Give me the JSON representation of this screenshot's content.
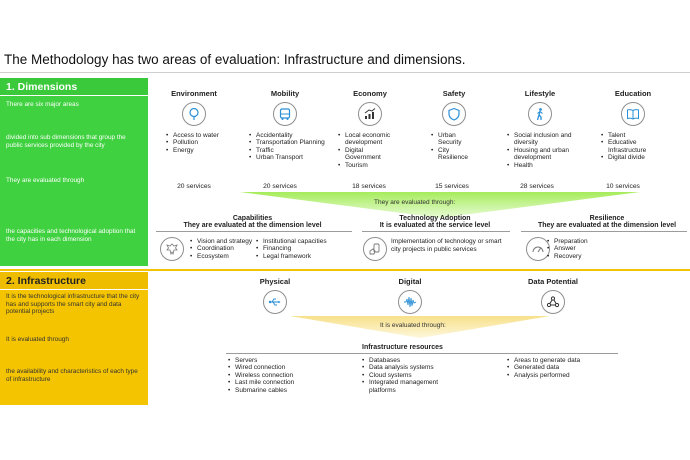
{
  "title": "The Methodology has two areas of evaluation: Infrastructure and dimensions.",
  "dimensions": {
    "header": "1.  Dimensions",
    "left_texts": [
      "There are six major areas",
      "divided into sub dimensions that group the public services provided by the city",
      "They are evaluated through",
      "the capacities and technological adoption that the city has in each dimension"
    ],
    "categories": [
      {
        "name": "Environment",
        "icon": "tree-icon",
        "items": [
          "Access to water",
          "Pollution",
          "Energy"
        ],
        "services": "20 services"
      },
      {
        "name": "Mobility",
        "icon": "bus-icon",
        "items": [
          "Accidentality",
          "Transportation Planning",
          "Traffic",
          "Urban Transport"
        ],
        "services": "20 services"
      },
      {
        "name": "Economy",
        "icon": "growth-chart-icon",
        "items": [
          "Local economic development",
          "Digital Government",
          "Tourism"
        ],
        "services": "18 services"
      },
      {
        "name": "Safety",
        "icon": "shield-icon",
        "items": [
          "Urban Security",
          "City Resilience"
        ],
        "services": "15 services"
      },
      {
        "name": "Lifestyle",
        "icon": "walking-person-icon",
        "items": [
          "Social inclusion and diversity",
          "Housing and urban development",
          "Health"
        ],
        "services": "28 services"
      },
      {
        "name": "Education",
        "icon": "book-icon",
        "items": [
          "Talent",
          "Educative Infrastructure",
          "Digital divide"
        ],
        "services": "10 services"
      }
    ],
    "evaluated_through": "They are evaluated through:",
    "capabilities": {
      "title": "Capabilities",
      "subtitle": "They are evaluated at the dimension level",
      "col1": [
        "Vision and strategy",
        "Coordination",
        "Ecosystem"
      ],
      "col2": [
        "Institutional capacities",
        "Financing",
        "Legal framework"
      ]
    },
    "technology": {
      "title": "Technology Adoption",
      "subtitle": "It is evaluated at the service level",
      "text": "Implementation of technology or smart city projects in public services"
    },
    "resilience": {
      "title": "Resilience",
      "subtitle": "They are evaluated at the dimension level",
      "items": [
        "Preparation",
        "Answer",
        "Recovery"
      ]
    }
  },
  "infrastructure": {
    "header": "2. Infrastructure",
    "left_texts": [
      "It is the technological infrastructure that the city has and supports the smart city and data potential projects",
      "It is evaluated through",
      "the availability and characteristics of each type of infrastructure"
    ],
    "categories": [
      {
        "name": "Physical",
        "icon": "usb-icon"
      },
      {
        "name": "Digital",
        "icon": "signal-wave-icon"
      },
      {
        "name": "Data Potential",
        "icon": "network-icon"
      }
    ],
    "evaluated_through": "It is evaluated through:",
    "resources_title": "Infrastructure resources",
    "col1": [
      "Servers",
      "Wired connection",
      "Wireless connection",
      "Last mile connection",
      "Submarine cables"
    ],
    "col2": [
      "Databases",
      "Data analysis systems",
      "Cloud systems",
      "Integrated management platforms"
    ],
    "col3": [
      "Areas to generate data",
      "Generated data",
      "Analysis performed"
    ]
  },
  "colors": {
    "dimensions": "#3fd13f",
    "infrastructure": "#f5c400",
    "triangle": "#b6ef7a"
  }
}
